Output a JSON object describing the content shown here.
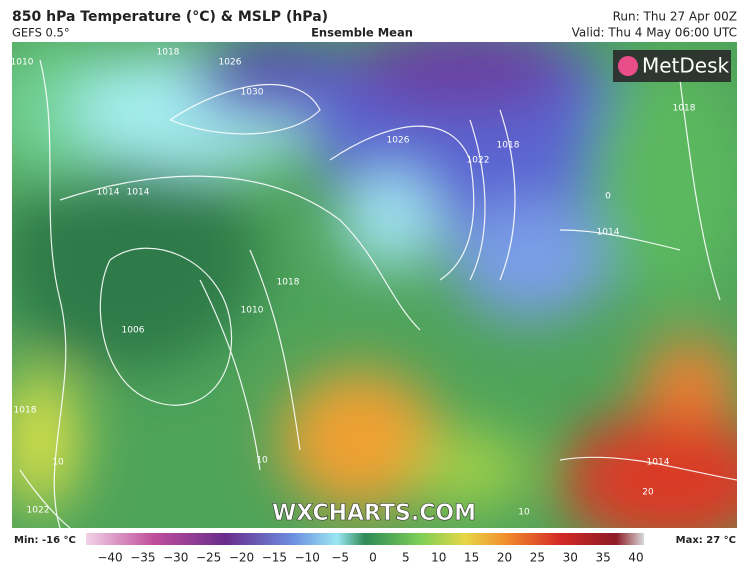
{
  "header": {
    "title": "850 hPa Temperature (°C) & MSLP (hPa)",
    "model": "GEFS 0.5°",
    "subtitle": "Ensemble Mean",
    "run": "Run: Thu 27 Apr 00Z",
    "valid": "Valid: Thu 4 May 06:00 UTC"
  },
  "logo": "MetDesk",
  "watermark": "WXCHARTS.COM",
  "map_labels": [
    "1010",
    "1018",
    "1026",
    "1030",
    "1026",
    "1022",
    "1018",
    "1014",
    "1014",
    "1006",
    "1010",
    "1018",
    "1018",
    "1022",
    "1014",
    "1018",
    "0",
    "10",
    "10",
    "20",
    "10",
    "1014"
  ],
  "colorbar": {
    "min_label": "Min: -16 °C",
    "max_label": "Max: 27 °C",
    "ticks": [
      "−40",
      "−35",
      "−30",
      "−25",
      "−20",
      "−15",
      "−10",
      "−5",
      "0",
      "5",
      "10",
      "15",
      "20",
      "25",
      "30",
      "35",
      "40"
    ]
  }
}
